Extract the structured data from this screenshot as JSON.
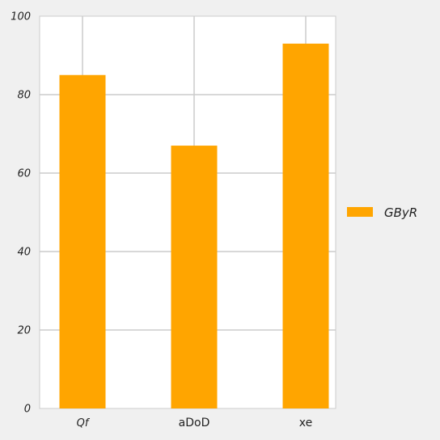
{
  "chart_data": {
    "type": "bar",
    "categories": [
      "Qf",
      "aDoD",
      "xe"
    ],
    "category_italic": [
      true,
      false,
      false
    ],
    "series": [
      {
        "name": "GByR",
        "values": [
          85,
          67,
          93
        ],
        "color": "#ffa500"
      }
    ],
    "ylim": [
      0,
      100
    ],
    "yticks": [
      0,
      20,
      40,
      60,
      80,
      100
    ],
    "grid": true,
    "legend_position": "right",
    "colors": {
      "background": "#f0f0f0",
      "plot_background": "#ffffff",
      "grid": "#cccccc",
      "bar": "#ffa500"
    }
  }
}
